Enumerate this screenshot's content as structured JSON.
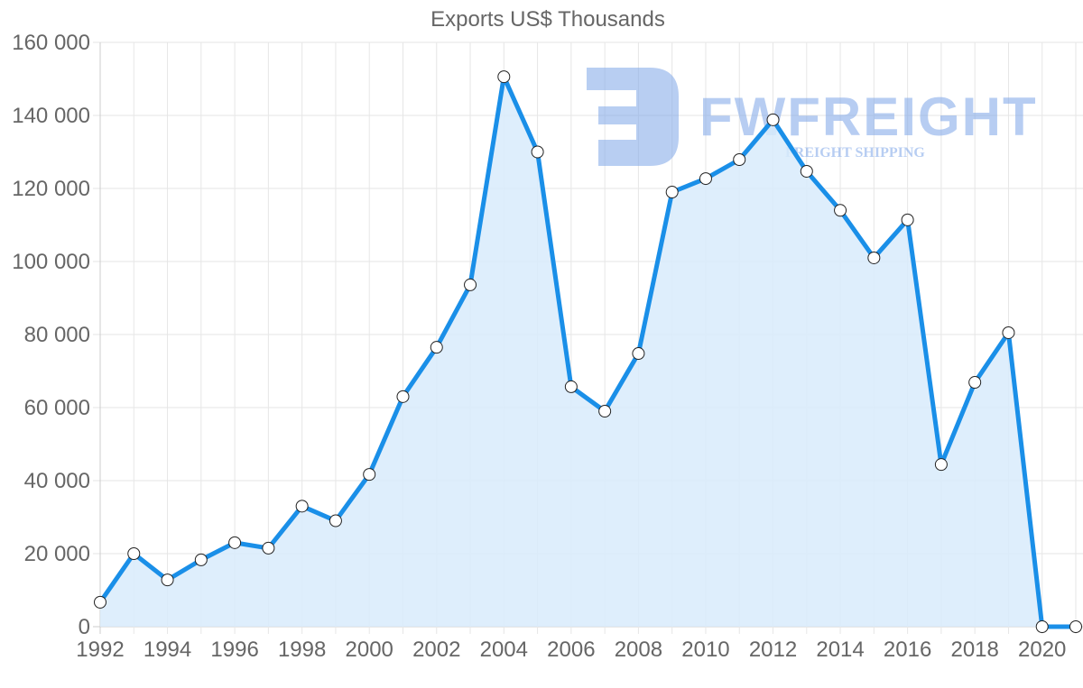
{
  "chart_data": {
    "type": "area",
    "title": "Exports US$ Thousands",
    "xlabel": "",
    "ylabel": "",
    "x": [
      1992,
      1993,
      1994,
      1995,
      1996,
      1997,
      1998,
      1999,
      2000,
      2001,
      2002,
      2003,
      2004,
      2005,
      2006,
      2007,
      2008,
      2009,
      2010,
      2011,
      2012,
      2013,
      2014,
      2015,
      2016,
      2017,
      2018,
      2019,
      2020,
      2021
    ],
    "series": [
      {
        "name": "Exports US$ Thousands",
        "values": [
          6700,
          20000,
          12800,
          18300,
          23000,
          21500,
          33000,
          29000,
          41700,
          63000,
          76500,
          93600,
          150600,
          130000,
          65700,
          59000,
          74800,
          119000,
          122700,
          127900,
          138800,
          124700,
          114000,
          101000,
          111400,
          44400,
          66900,
          80500,
          0,
          0
        ],
        "color": "#1a8fe8",
        "fill": "#d8ebfb"
      }
    ],
    "ylim": [
      0,
      160000
    ],
    "yticks": [
      "0",
      "20 000",
      "40 000",
      "60 000",
      "80 000",
      "100 000",
      "120 000",
      "140 000",
      "160 000"
    ],
    "xticks": [
      "1992",
      "1994",
      "1996",
      "1998",
      "2000",
      "2002",
      "2004",
      "2006",
      "2008",
      "2010",
      "2012",
      "2014",
      "2016",
      "2018",
      "2020"
    ],
    "grid": true,
    "legend": "none"
  },
  "watermark": {
    "brand": "FWFREIGHT",
    "tagline": "FREIGHT SHIPPING",
    "color": "#7ea6e8"
  }
}
